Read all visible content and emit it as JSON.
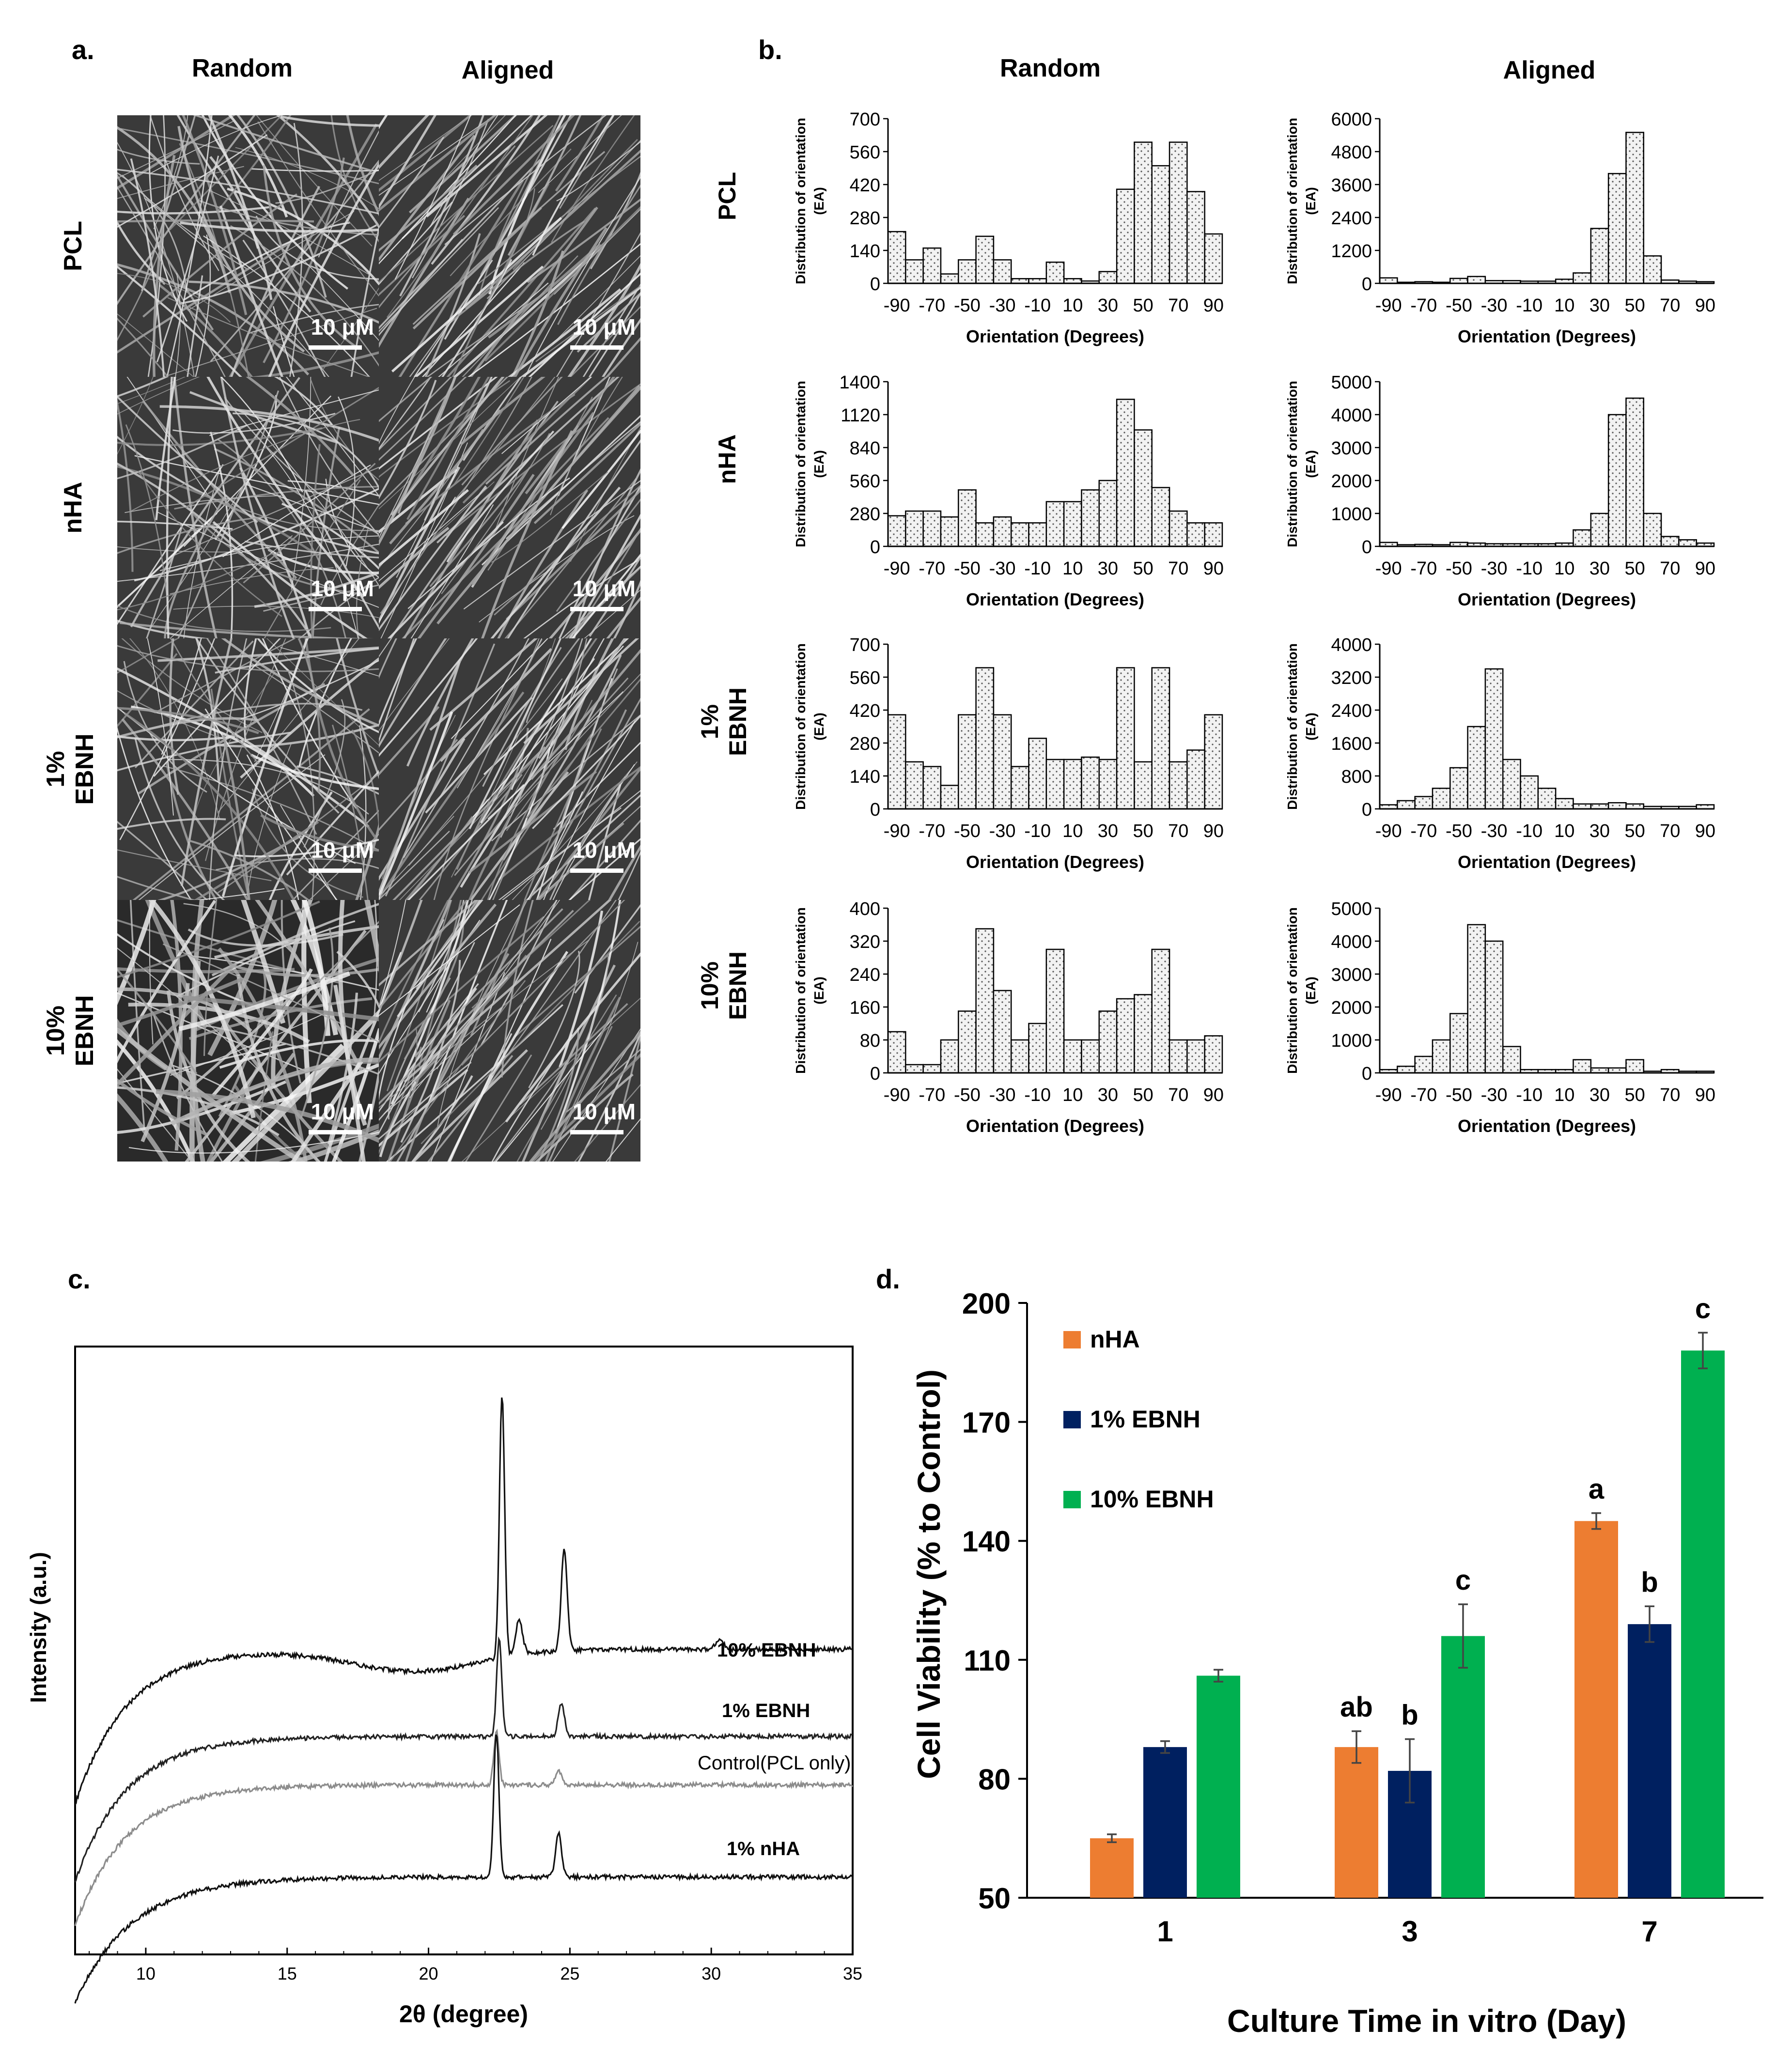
{
  "panel_labels": {
    "a": "a.",
    "b": "b.",
    "c": "c.",
    "d": "d."
  },
  "panel_a": {
    "col_titles": [
      "Random",
      "Aligned"
    ],
    "row_labels": [
      [
        "PCL"
      ],
      [
        "nHA"
      ],
      [
        "1%",
        "EBNH"
      ],
      [
        "10%",
        "EBNH"
      ]
    ],
    "scale_label": "10 μM"
  },
  "panel_b": {
    "col_titles": [
      "Random",
      "Aligned"
    ],
    "row_labels": [
      [
        "PCL"
      ],
      [
        "nHA"
      ],
      [
        "1%",
        "EBNH"
      ],
      [
        "10%",
        "EBNH"
      ]
    ],
    "ylabel_lines": [
      "Distribution of orientation",
      "(EA)"
    ],
    "xlabel": "Orientation (Degrees)",
    "x_ticks": [
      "-90",
      "-70",
      "-50",
      "-30",
      "-10",
      "10",
      "30",
      "50",
      "70",
      "90"
    ]
  },
  "panel_c": {
    "xlabel": "2θ (degree)",
    "ylabel": "Intensity (a.u.)",
    "x_ticks": [
      "10",
      "15",
      "20",
      "25",
      "30",
      "35"
    ],
    "curve_labels": [
      "10% EBNH",
      "1% EBNH",
      "Control(PCL only)",
      "1% nHA"
    ],
    "colors": {
      "10% EBNH": "#111111",
      "1% EBNH": "#222222",
      "Control(PCL only)": "#8c8c8c",
      "1% nHA": "#111111"
    }
  },
  "colors": {
    "nHA": "#ed7d31",
    "1% EBNH": "#002060",
    "10% EBNH": "#00b050",
    "hist_fill": "#f2f2f2",
    "axis": "#000000"
  },
  "chart_data": [
    {
      "type": "bar",
      "title": "Random PCL",
      "categories": [
        "-90",
        "-80",
        "-70",
        "-60",
        "-50",
        "-40",
        "-30",
        "-20",
        "-10",
        "0",
        "10",
        "20",
        "30",
        "40",
        "50",
        "60",
        "70",
        "80",
        "90"
      ],
      "values": [
        220,
        100,
        150,
        40,
        100,
        200,
        100,
        20,
        20,
        90,
        20,
        10,
        50,
        400,
        600,
        500,
        600,
        390,
        210
      ],
      "ylim": [
        0,
        700
      ],
      "y_ticks": [
        0,
        140,
        280,
        420,
        560,
        700
      ],
      "xlabel": "Orientation (Degrees)",
      "ylabel": "Distribution of orientation (EA)"
    },
    {
      "type": "bar",
      "title": "Aligned PCL",
      "categories": [
        "-90",
        "-80",
        "-70",
        "-60",
        "-50",
        "-40",
        "-30",
        "-20",
        "-10",
        "0",
        "10",
        "20",
        "30",
        "40",
        "50",
        "60",
        "70",
        "80",
        "90"
      ],
      "values": [
        200,
        40,
        60,
        40,
        180,
        250,
        100,
        100,
        80,
        80,
        150,
        380,
        2000,
        4000,
        5500,
        1000,
        120,
        80,
        60
      ],
      "ylim": [
        0,
        6000
      ],
      "y_ticks": [
        0,
        1200,
        2400,
        3600,
        4800,
        6000
      ],
      "xlabel": "Orientation (Degrees)",
      "ylabel": "Distribution of orientation (EA)"
    },
    {
      "type": "bar",
      "title": "Random nHA",
      "categories": [
        "-90",
        "-80",
        "-70",
        "-60",
        "-50",
        "-40",
        "-30",
        "-20",
        "-10",
        "0",
        "10",
        "20",
        "30",
        "40",
        "50",
        "60",
        "70",
        "80",
        "90"
      ],
      "values": [
        260,
        300,
        300,
        250,
        480,
        200,
        250,
        200,
        200,
        380,
        380,
        480,
        560,
        1250,
        990,
        500,
        300,
        200,
        200
      ],
      "ylim": [
        0,
        1400
      ],
      "y_ticks": [
        0,
        280,
        560,
        840,
        1120,
        1400
      ],
      "xlabel": "Orientation (Degrees)",
      "ylabel": "Distribution of orientation (EA)"
    },
    {
      "type": "bar",
      "title": "Aligned nHA",
      "categories": [
        "-90",
        "-80",
        "-70",
        "-60",
        "-50",
        "-40",
        "-30",
        "-20",
        "-10",
        "0",
        "10",
        "20",
        "30",
        "40",
        "50",
        "60",
        "70",
        "80",
        "90"
      ],
      "values": [
        120,
        50,
        60,
        50,
        120,
        100,
        80,
        80,
        80,
        80,
        100,
        500,
        1000,
        4000,
        4500,
        1000,
        300,
        200,
        100
      ],
      "ylim": [
        0,
        5000
      ],
      "y_ticks": [
        0,
        1000,
        2000,
        3000,
        4000,
        5000
      ],
      "xlabel": "Orientation (Degrees)",
      "ylabel": "Distribution of orientation (EA)"
    },
    {
      "type": "bar",
      "title": "Random 1% EBNH",
      "categories": [
        "-90",
        "-80",
        "-70",
        "-60",
        "-50",
        "-40",
        "-30",
        "-20",
        "-10",
        "0",
        "10",
        "20",
        "30",
        "40",
        "50",
        "60",
        "70",
        "80",
        "90"
      ],
      "values": [
        400,
        200,
        180,
        100,
        400,
        600,
        400,
        180,
        300,
        210,
        210,
        220,
        210,
        600,
        200,
        600,
        200,
        250,
        400
      ],
      "ylim": [
        0,
        700
      ],
      "y_ticks": [
        0,
        140,
        280,
        420,
        560,
        700
      ],
      "xlabel": "Orientation (Degrees)",
      "ylabel": "Distribution of orientation (EA)"
    },
    {
      "type": "bar",
      "title": "Aligned 1% EBNH",
      "categories": [
        "-90",
        "-80",
        "-70",
        "-60",
        "-50",
        "-40",
        "-30",
        "-20",
        "-10",
        "0",
        "10",
        "20",
        "30",
        "40",
        "50",
        "60",
        "70",
        "80",
        "90"
      ],
      "values": [
        100,
        200,
        300,
        500,
        1000,
        2000,
        3400,
        1200,
        800,
        500,
        250,
        120,
        120,
        150,
        120,
        60,
        60,
        60,
        100
      ],
      "ylim": [
        0,
        4000
      ],
      "y_ticks": [
        0,
        800,
        1600,
        2400,
        3200,
        4000
      ],
      "xlabel": "Orientation (Degrees)",
      "ylabel": "Distribution of orientation (EA)"
    },
    {
      "type": "bar",
      "title": "Random 10% EBNH",
      "categories": [
        "-90",
        "-80",
        "-70",
        "-60",
        "-50",
        "-40",
        "-30",
        "-20",
        "-10",
        "0",
        "10",
        "20",
        "30",
        "40",
        "50",
        "60",
        "70",
        "80",
        "90"
      ],
      "values": [
        100,
        20,
        20,
        80,
        150,
        350,
        200,
        80,
        120,
        300,
        80,
        80,
        150,
        180,
        190,
        300,
        80,
        80,
        90
      ],
      "ylim": [
        0,
        400
      ],
      "y_ticks": [
        0,
        80,
        160,
        240,
        320,
        400
      ],
      "xlabel": "Orientation (Degrees)",
      "ylabel": "Distribution of orientation (EA)"
    },
    {
      "type": "bar",
      "title": "Aligned 10% EBNH",
      "categories": [
        "-90",
        "-80",
        "-70",
        "-60",
        "-50",
        "-40",
        "-30",
        "-20",
        "-10",
        "0",
        "10",
        "20",
        "30",
        "40",
        "50",
        "60",
        "70",
        "80",
        "90"
      ],
      "values": [
        100,
        200,
        500,
        1000,
        1800,
        4500,
        4000,
        800,
        100,
        100,
        100,
        400,
        150,
        150,
        400,
        50,
        100,
        50,
        50
      ],
      "ylim": [
        0,
        5000
      ],
      "y_ticks": [
        0,
        1000,
        2000,
        3000,
        4000,
        5000
      ],
      "xlabel": "Orientation (Degrees)",
      "ylabel": "Distribution of orientation (EA)"
    },
    {
      "type": "bar",
      "title": "Cell Viability",
      "categories": [
        "1",
        "3",
        "7"
      ],
      "series": [
        {
          "name": "nHA",
          "values": [
            65,
            88,
            145
          ],
          "errors": [
            1,
            4,
            2
          ],
          "letters": [
            "",
            "ab",
            "a"
          ]
        },
        {
          "name": "1% EBNH",
          "values": [
            88,
            82,
            119
          ],
          "errors": [
            1.5,
            8,
            4.5
          ],
          "letters": [
            "",
            "b",
            "b"
          ]
        },
        {
          "name": "10% EBNH",
          "values": [
            106,
            116,
            188
          ],
          "errors": [
            1.5,
            8,
            4.5
          ],
          "letters": [
            "",
            "c",
            "c"
          ]
        }
      ],
      "xlabel": "Culture Time in vitro (Day)",
      "ylabel": "Cell Viability (% to Control)",
      "ylim": [
        50,
        200
      ],
      "y_ticks": [
        50,
        80,
        110,
        140,
        170,
        200
      ],
      "legend": "top-left"
    }
  ]
}
